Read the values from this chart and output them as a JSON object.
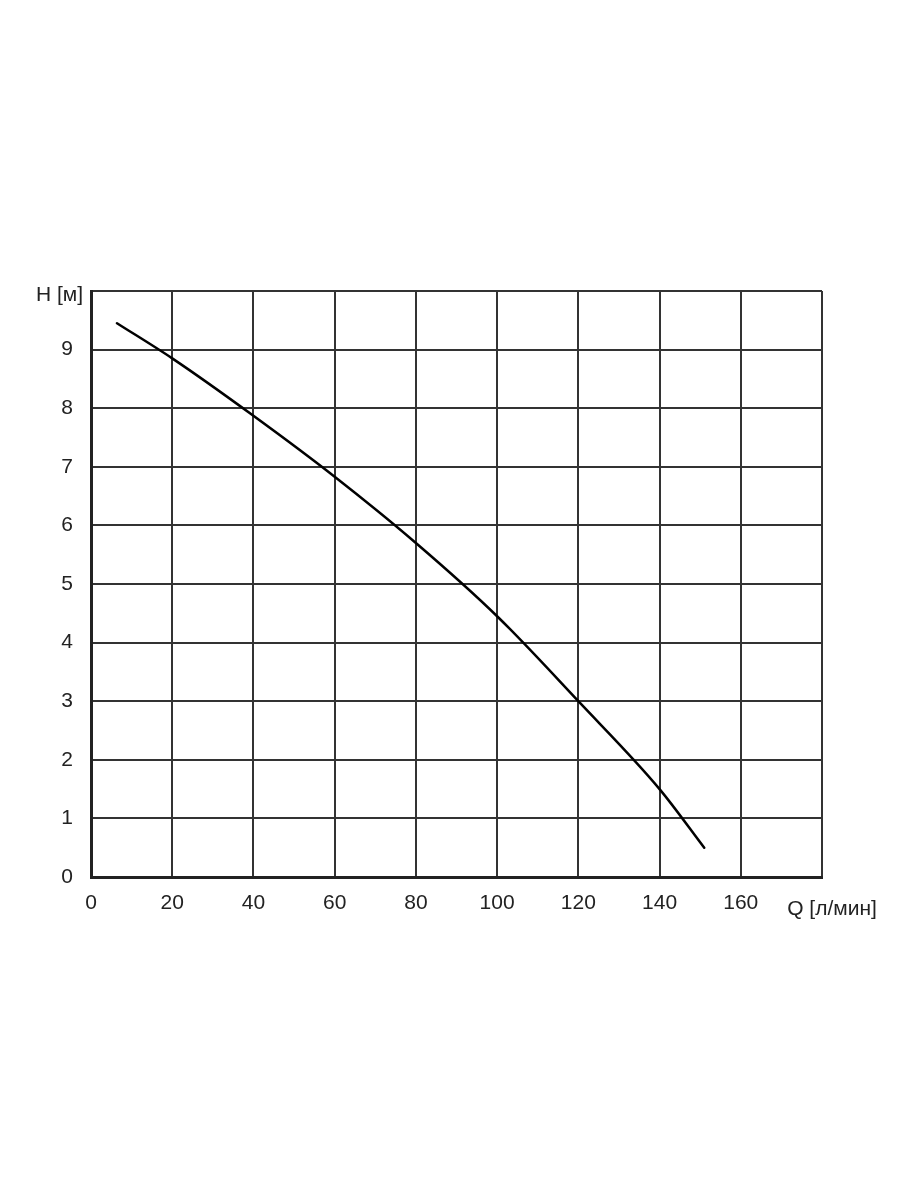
{
  "chart_data": {
    "type": "line",
    "xlabel": "Q [л/мин]",
    "ylabel": "H [м]",
    "xlim": [
      0,
      180
    ],
    "ylim": [
      0,
      10
    ],
    "xticks": [
      0,
      20,
      40,
      60,
      80,
      100,
      120,
      140,
      160,
      {
        "value": 180,
        "label": null
      }
    ],
    "yticks": [
      0,
      1,
      2,
      3,
      4,
      5,
      6,
      7,
      8,
      9,
      {
        "value": 10,
        "label": null
      }
    ],
    "grid": true,
    "marker": "none",
    "line_style": "solid",
    "x": [
      6.4,
      20,
      40,
      60,
      80,
      100,
      120,
      140,
      151
    ],
    "series": [
      {
        "color": "#000000",
        "values": [
          9.45,
          8.85,
          7.87,
          6.83,
          5.7,
          4.45,
          3,
          1.5,
          0.5
        ]
      }
    ]
  }
}
